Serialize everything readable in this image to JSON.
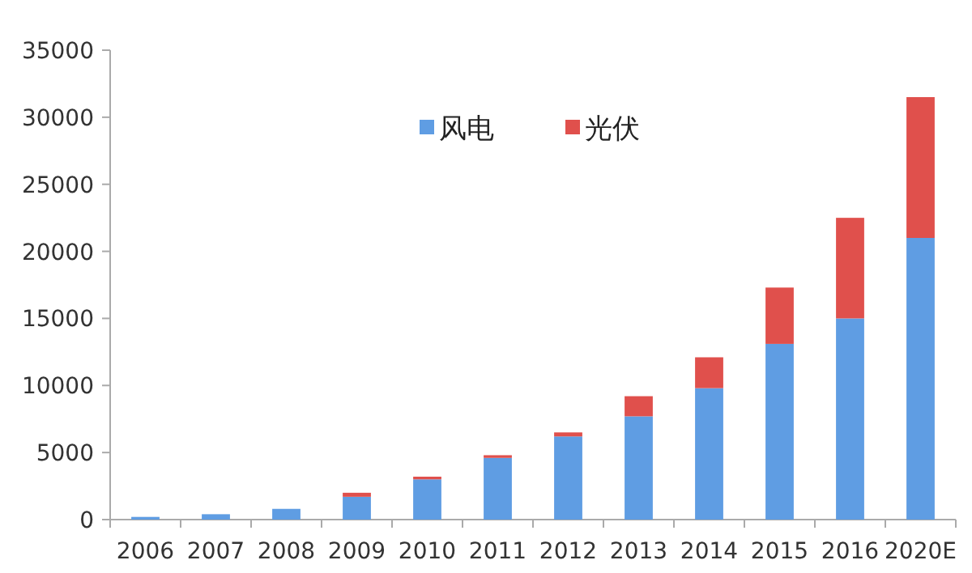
{
  "chart_data": {
    "type": "bar",
    "stacked": true,
    "categories": [
      "2006",
      "2007",
      "2008",
      "2009",
      "2010",
      "2011",
      "2012",
      "2013",
      "2014",
      "2015",
      "2016",
      "2020E"
    ],
    "series": [
      {
        "name": "风电",
        "color": "#5f9de3",
        "values": [
          200,
          400,
          800,
          1700,
          3000,
          4600,
          6200,
          7700,
          9800,
          13100,
          15000,
          21000
        ]
      },
      {
        "name": "光伏",
        "color": "#e0504c",
        "values": [
          0,
          0,
          0,
          300,
          200,
          200,
          300,
          1500,
          2300,
          4200,
          7500,
          10500
        ]
      }
    ],
    "ylim": [
      0,
      35000
    ],
    "yticks": [
      0,
      5000,
      10000,
      15000,
      20000,
      25000,
      30000,
      35000
    ],
    "grid": false,
    "legend": "top"
  }
}
